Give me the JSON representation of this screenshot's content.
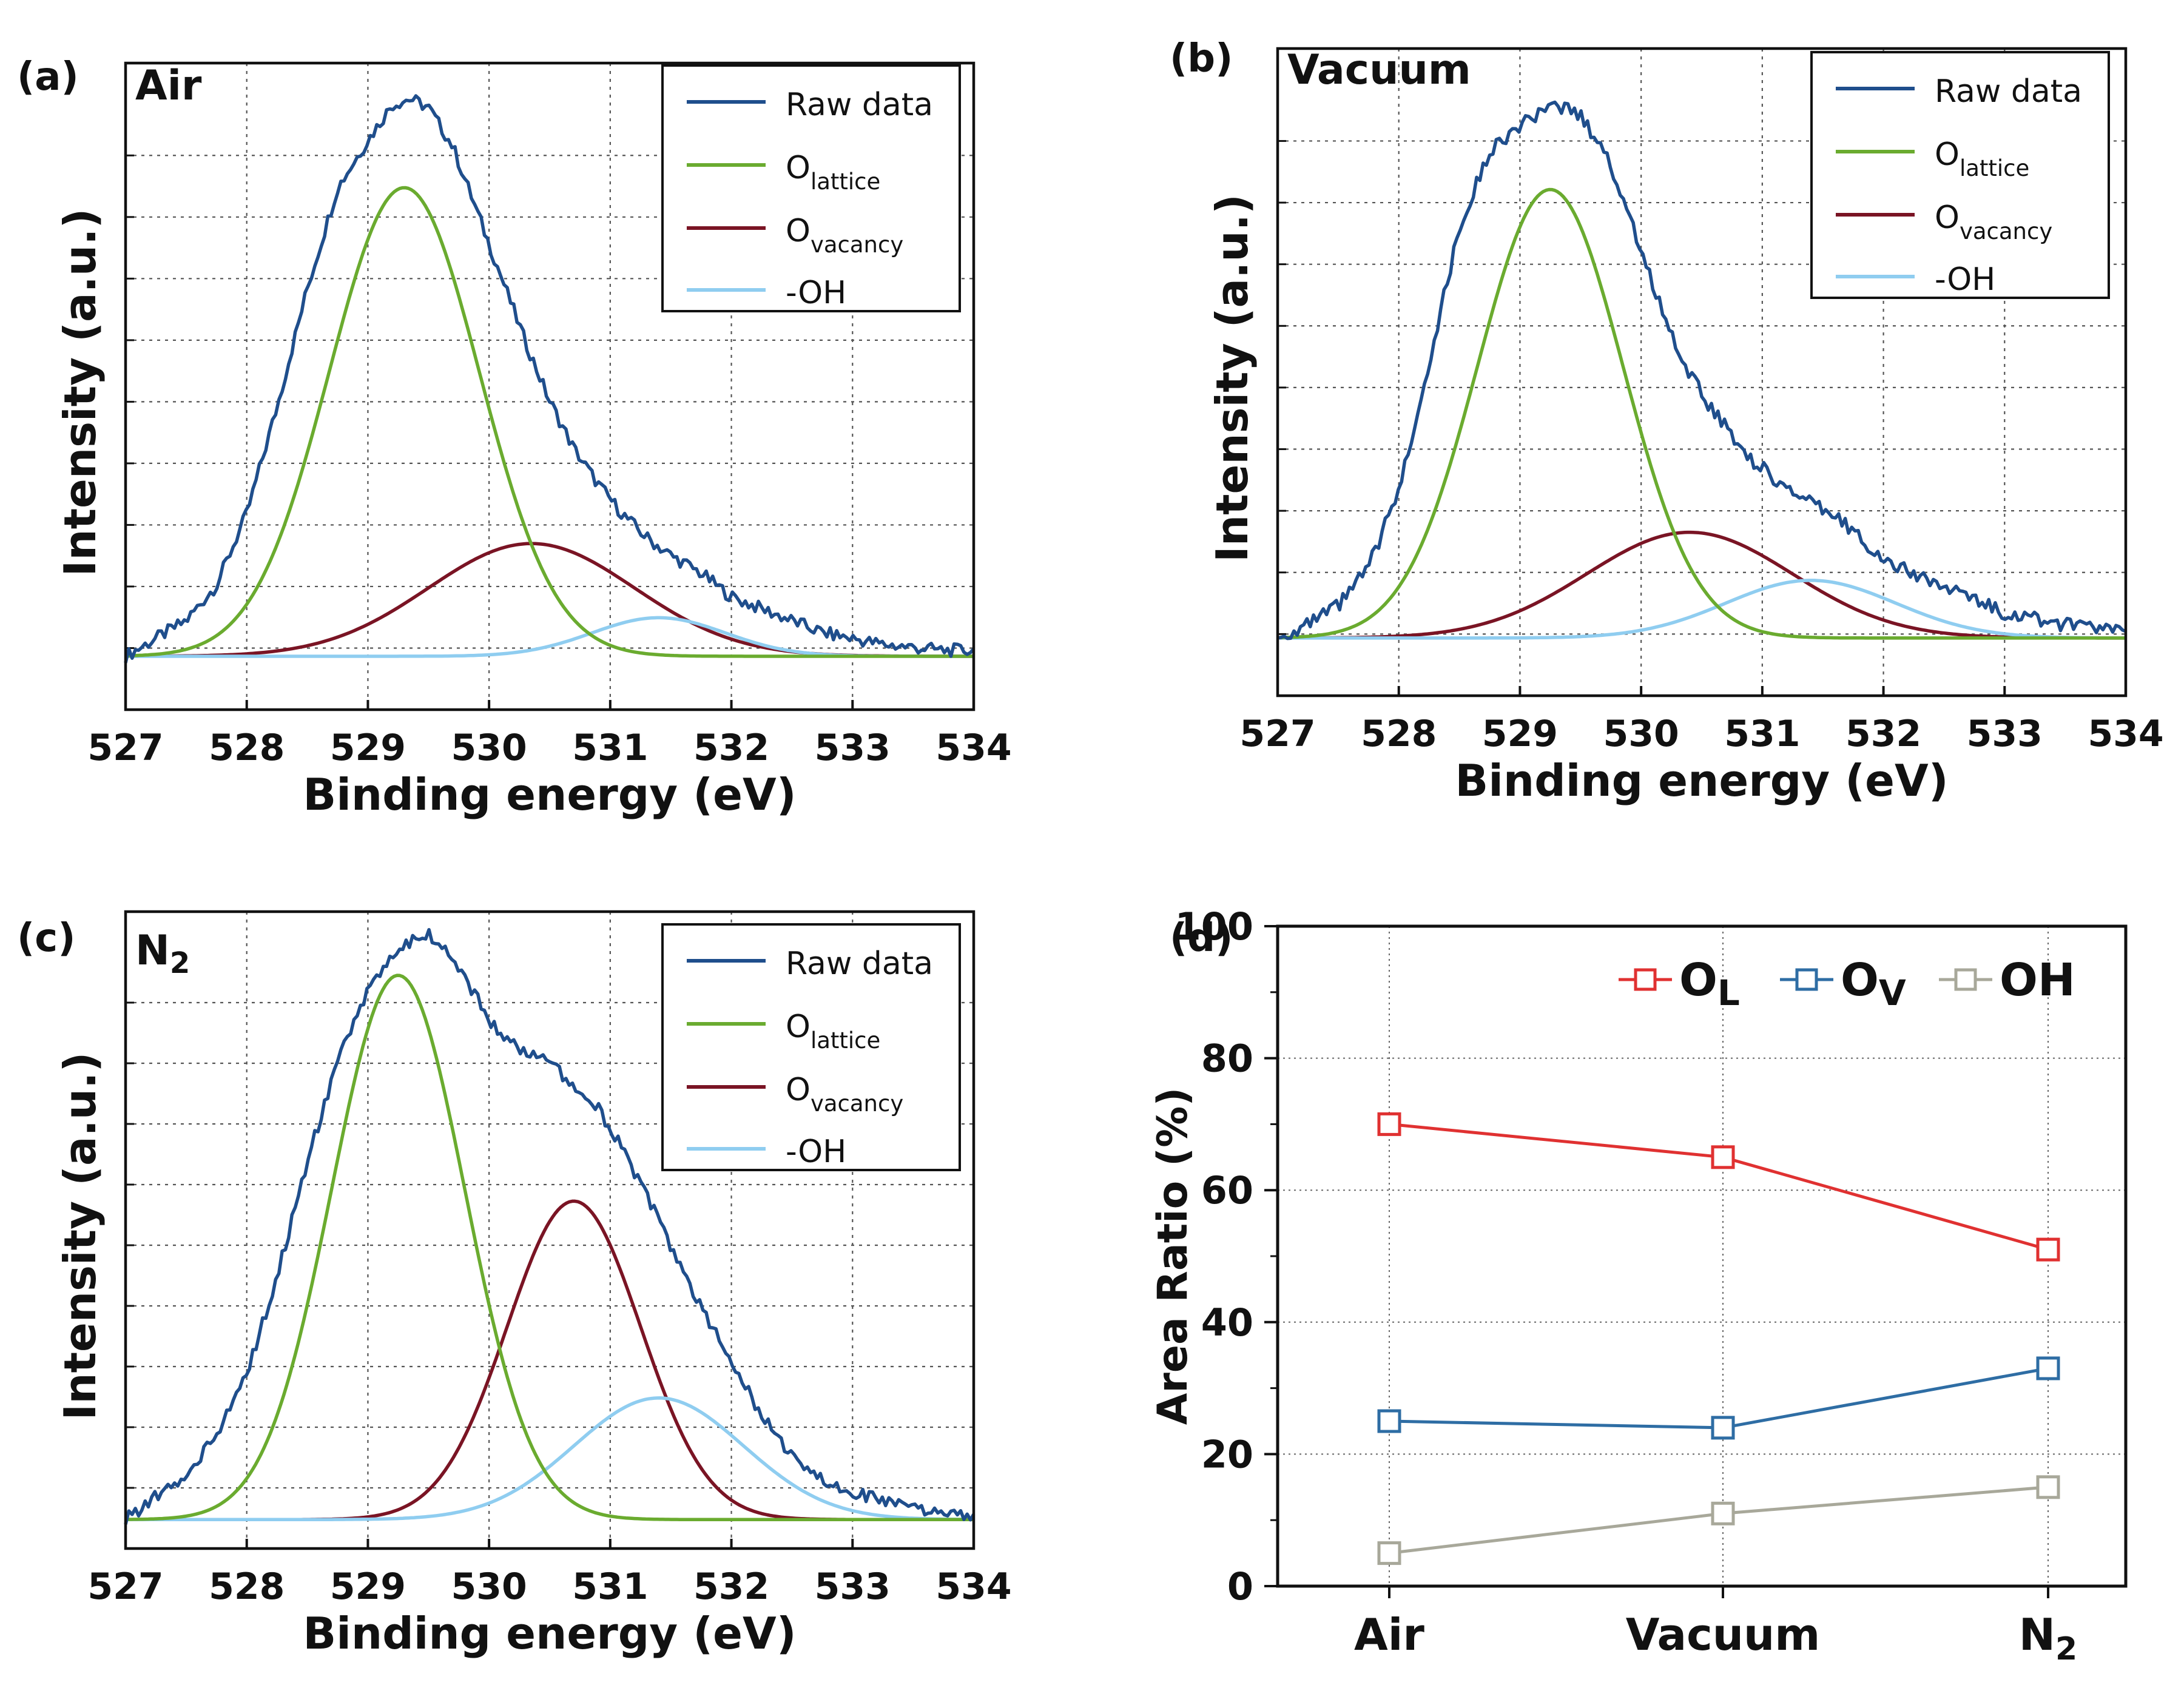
{
  "chart_data": [
    {
      "type": "line",
      "panel_label": "(a)",
      "condition": {
        "base": "Air",
        "sub": ""
      },
      "xlabel": "Binding energy (eV)",
      "ylabel": "Intensity (a.u.)",
      "xlim": [
        527,
        534
      ],
      "ylim": [
        -0.09,
        1.0
      ],
      "x_ticks": [
        "527",
        "528",
        "529",
        "530",
        "531",
        "532",
        "533",
        "534"
      ],
      "grid": true,
      "legend_position": "top-right",
      "legend": [
        {
          "base": "Raw data",
          "sub": ""
        },
        {
          "base": "O",
          "sub": "lattice"
        },
        {
          "base": "O",
          "sub": "vacancy"
        },
        {
          "base": "-OH",
          "sub": ""
        }
      ],
      "series_colors": [
        "#1f4e8c",
        "#6aab2f",
        "#7a1424",
        "#8fcdf0"
      ],
      "raw": {
        "x": [
          527.0,
          527.25,
          527.5,
          527.75,
          528.0,
          528.25,
          528.5,
          528.75,
          529.0,
          529.2,
          529.35,
          529.5,
          529.7,
          529.9,
          530.1,
          530.3,
          530.5,
          530.7,
          530.9,
          531.1,
          531.3,
          531.5,
          531.75,
          532.0,
          532.25,
          532.5,
          532.75,
          533.0,
          533.25,
          533.5,
          533.75,
          534.0
        ],
        "y": [
          0.0,
          0.03,
          0.06,
          0.12,
          0.24,
          0.42,
          0.62,
          0.79,
          0.87,
          0.93,
          0.94,
          0.925,
          0.86,
          0.75,
          0.64,
          0.53,
          0.43,
          0.35,
          0.29,
          0.24,
          0.2,
          0.17,
          0.14,
          0.1,
          0.08,
          0.06,
          0.04,
          0.03,
          0.02,
          0.015,
          0.01,
          0.01
        ]
      },
      "components": [
        {
          "name": "O lattice",
          "center": 529.3,
          "amplitude": 0.79,
          "sigma": 0.62
        },
        {
          "name": "O vacancy",
          "center": 530.35,
          "amplitude": 0.19,
          "sigma": 0.85
        },
        {
          "name": "-OH",
          "center": 531.4,
          "amplitude": 0.065,
          "sigma": 0.55
        }
      ]
    },
    {
      "type": "line",
      "panel_label": "(b)",
      "condition": {
        "base": "Vacuum",
        "sub": ""
      },
      "xlabel": "Binding energy (eV)",
      "ylabel": "Intensity (a.u.)",
      "xlim": [
        527,
        534
      ],
      "ylim": [
        -0.09,
        0.92
      ],
      "x_ticks": [
        "527",
        "528",
        "529",
        "530",
        "531",
        "532",
        "533",
        "534"
      ],
      "grid": true,
      "legend_position": "top-right",
      "legend": [
        {
          "base": "Raw data",
          "sub": ""
        },
        {
          "base": "O",
          "sub": "lattice"
        },
        {
          "base": "O",
          "sub": "vacancy"
        },
        {
          "base": "-OH",
          "sub": ""
        }
      ],
      "series_colors": [
        "#1f4e8c",
        "#6aab2f",
        "#7a1424",
        "#8fcdf0"
      ],
      "raw": {
        "x": [
          527.0,
          527.25,
          527.5,
          527.75,
          528.0,
          528.25,
          528.5,
          528.75,
          529.0,
          529.2,
          529.35,
          529.5,
          529.7,
          529.9,
          530.1,
          530.3,
          530.5,
          530.7,
          530.9,
          531.1,
          531.3,
          531.5,
          531.75,
          532.0,
          532.25,
          532.5,
          532.75,
          533.0,
          533.25,
          533.5,
          533.75,
          534.0
        ],
        "y": [
          0.0,
          0.02,
          0.05,
          0.11,
          0.23,
          0.43,
          0.64,
          0.76,
          0.8,
          0.82,
          0.83,
          0.815,
          0.76,
          0.66,
          0.55,
          0.45,
          0.38,
          0.33,
          0.28,
          0.25,
          0.22,
          0.2,
          0.17,
          0.12,
          0.1,
          0.08,
          0.06,
          0.04,
          0.03,
          0.02,
          0.015,
          0.01
        ]
      },
      "components": [
        {
          "name": "O lattice",
          "center": 529.25,
          "amplitude": 0.7,
          "sigma": 0.6
        },
        {
          "name": "O vacancy",
          "center": 530.4,
          "amplitude": 0.165,
          "sigma": 0.85
        },
        {
          "name": "-OH",
          "center": 531.4,
          "amplitude": 0.09,
          "sigma": 0.7
        }
      ]
    },
    {
      "type": "line",
      "panel_label": "(c)",
      "condition": {
        "base": "N",
        "sub": "2"
      },
      "xlabel": "Binding energy (eV)",
      "ylabel": "Intensity (a.u.)",
      "xlim": [
        527,
        534
      ],
      "ylim": [
        -0.05,
        1.05
      ],
      "x_ticks": [
        "527",
        "528",
        "529",
        "530",
        "531",
        "532",
        "533",
        "534"
      ],
      "grid": true,
      "legend_position": "top-right",
      "legend": [
        {
          "base": "Raw data",
          "sub": ""
        },
        {
          "base": "O",
          "sub": "lattice"
        },
        {
          "base": "O",
          "sub": "vacancy"
        },
        {
          "base": "-OH",
          "sub": ""
        }
      ],
      "series_colors": [
        "#1f4e8c",
        "#6aab2f",
        "#7a1424",
        "#8fcdf0"
      ],
      "raw": {
        "x": [
          527.0,
          527.25,
          527.5,
          527.75,
          528.0,
          528.25,
          528.5,
          528.75,
          529.0,
          529.2,
          529.35,
          529.5,
          529.7,
          529.9,
          530.1,
          530.3,
          530.5,
          530.7,
          530.9,
          531.1,
          531.3,
          531.5,
          531.75,
          532.0,
          532.25,
          532.5,
          532.75,
          533.0,
          533.25,
          533.5,
          533.75,
          534.0
        ],
        "y": [
          0.0,
          0.04,
          0.07,
          0.15,
          0.25,
          0.42,
          0.62,
          0.79,
          0.91,
          0.98,
          1.0,
          1.01,
          0.97,
          0.9,
          0.83,
          0.81,
          0.79,
          0.75,
          0.71,
          0.64,
          0.56,
          0.47,
          0.37,
          0.27,
          0.18,
          0.11,
          0.07,
          0.05,
          0.03,
          0.02,
          0.01,
          0.01
        ]
      },
      "components": [
        {
          "name": "O lattice",
          "center": 529.25,
          "amplitude": 0.94,
          "sigma": 0.55
        },
        {
          "name": "O vacancy",
          "center": 530.7,
          "amplitude": 0.55,
          "sigma": 0.55
        },
        {
          "name": "-OH",
          "center": 531.4,
          "amplitude": 0.21,
          "sigma": 0.7
        }
      ]
    },
    {
      "type": "line",
      "panel_label": "(d)",
      "xlabel": "",
      "ylabel": "Area Ratio (%)",
      "ylim": [
        0,
        100
      ],
      "y_ticks": [
        "0",
        "20",
        "40",
        "60",
        "80",
        "100"
      ],
      "categories": [
        {
          "base": "Air",
          "sub": ""
        },
        {
          "base": "Vacuum",
          "sub": ""
        },
        {
          "base": "N",
          "sub": "2"
        }
      ],
      "grid": true,
      "legend_position": "top-right",
      "series": [
        {
          "name": {
            "base": "O",
            "sub": "L"
          },
          "color": "#e03131",
          "values": [
            70,
            65,
            51
          ]
        },
        {
          "name": {
            "base": "O",
            "sub": "V"
          },
          "color": "#2e6da4",
          "values": [
            25,
            24,
            33
          ]
        },
        {
          "name": {
            "base": "OH",
            "sub": ""
          },
          "color": "#a8a89a",
          "values": [
            5,
            11,
            15
          ]
        }
      ]
    }
  ]
}
